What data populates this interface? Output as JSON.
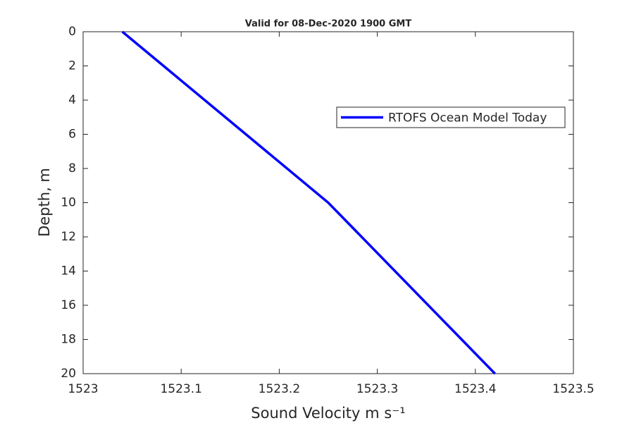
{
  "chart_data": {
    "type": "line",
    "title": "Valid for 08-Dec-2020 1900 GMT",
    "xlabel": "Sound Velocity m s⁻¹",
    "ylabel": "Depth, m",
    "x": [
      1523.04,
      1523.25,
      1523.42
    ],
    "series": [
      {
        "name": "RTOFS Ocean Model Today",
        "color": "#0000ff",
        "values": [
          0,
          10,
          20
        ]
      }
    ],
    "xlim": [
      1523,
      1523.5
    ],
    "xticks": [
      1523,
      1523.1,
      1523.2,
      1523.3,
      1523.4,
      1523.5
    ],
    "ylim": [
      0,
      20
    ],
    "yticks": [
      0,
      2,
      4,
      6,
      8,
      10,
      12,
      14,
      16,
      18,
      20
    ],
    "y_reversed": true,
    "grid": false,
    "legend": "upper right"
  }
}
